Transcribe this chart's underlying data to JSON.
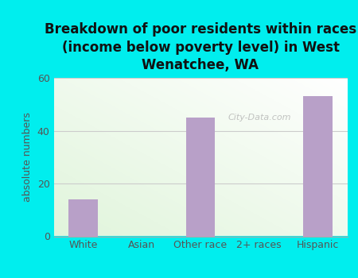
{
  "categories": [
    "White",
    "Asian",
    "Other race",
    "2+ races",
    "Hispanic"
  ],
  "values": [
    14,
    0,
    45,
    0,
    53
  ],
  "bar_color": "#b8a0c8",
  "title": "Breakdown of poor residents within races\n(income below poverty level) in West\nWenatchee, WA",
  "ylabel": "absolute numbers",
  "ylim": [
    0,
    60
  ],
  "yticks": [
    0,
    20,
    40,
    60
  ],
  "background_color": "#00eeee",
  "plot_bg_color_topleft": "#e8f5e0",
  "plot_bg_color_topright": "#f8fcf5",
  "plot_bg_color_bottom": "#f0faf0",
  "title_fontsize": 12,
  "tick_fontsize": 9,
  "ylabel_fontsize": 9,
  "watermark": "City-Data.com",
  "grid_color": "#cccccc"
}
